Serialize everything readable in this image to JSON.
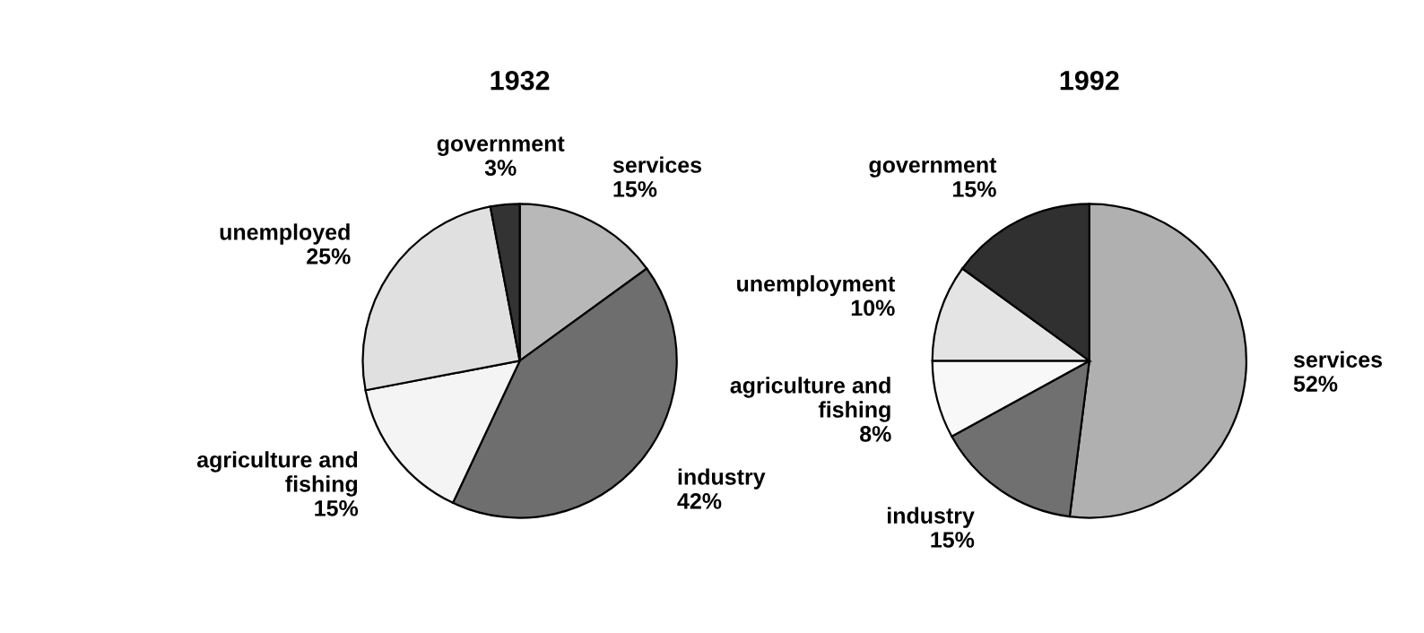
{
  "chart_data": [
    {
      "type": "pie",
      "title": "1932",
      "categories": [
        "services",
        "industry",
        "agriculture and\nfishing",
        "unemployed",
        "government"
      ],
      "values": [
        15,
        42,
        15,
        25,
        3
      ],
      "value_labels": [
        "15%",
        "42%",
        "15%",
        "25%",
        "3%"
      ],
      "colors": [
        "#b8b8b8",
        "#6e6e6e",
        "#f4f4f4",
        "#e0e0e0",
        "#333333"
      ]
    },
    {
      "type": "pie",
      "title": "1992",
      "categories": [
        "services",
        "industry",
        "agriculture and\nfishing",
        "unemployment",
        "government"
      ],
      "values": [
        52,
        15,
        8,
        10,
        15
      ],
      "value_labels": [
        "52%",
        "15%",
        "8%",
        "10%",
        "15%"
      ],
      "colors": [
        "#b0b0b0",
        "#707070",
        "#f8f8f8",
        "#e4e4e4",
        "#303030"
      ]
    }
  ]
}
